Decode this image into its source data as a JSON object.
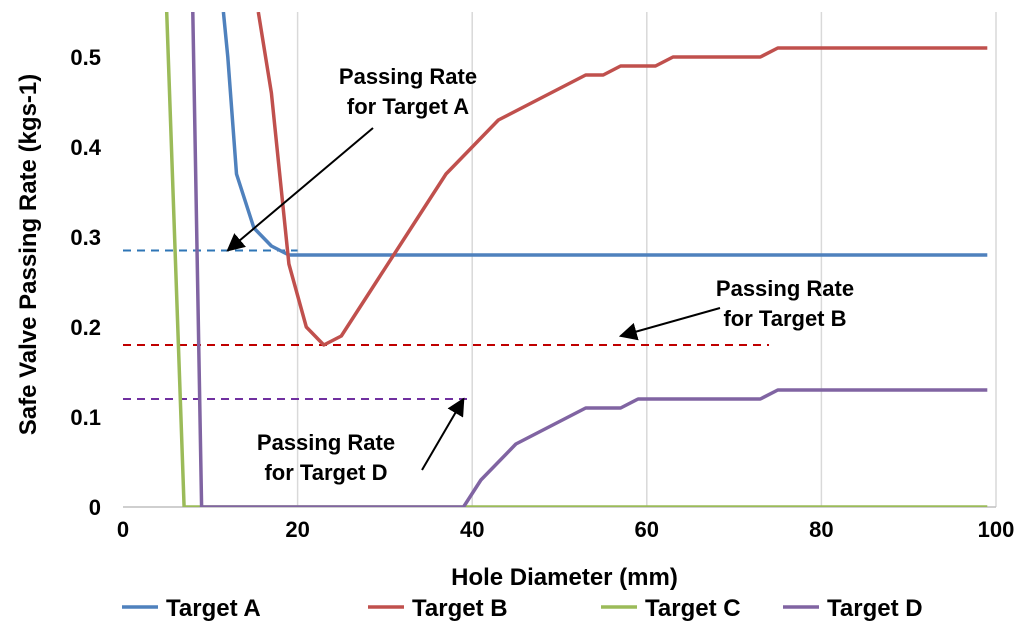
{
  "chart_data": {
    "type": "line",
    "title": "",
    "xlabel": "Hole Diameter (mm)",
    "ylabel": "Safe Valve Passing Rate (kgs-1)",
    "xlim": [
      0,
      100
    ],
    "ylim": [
      0,
      0.55
    ],
    "x_ticks": [
      "0",
      "20",
      "40",
      "60",
      "80",
      "100"
    ],
    "y_ticks": [
      "0",
      "0.1",
      "0.2",
      "0.3",
      "0.4",
      "0.5"
    ],
    "grid": "vertical",
    "legend_position": "bottom",
    "series": [
      {
        "name": "Target A",
        "color": "#4f81bd",
        "points": [
          [
            11.5,
            0.55
          ],
          [
            12,
            0.5
          ],
          [
            13,
            0.37
          ],
          [
            15,
            0.31
          ],
          [
            17,
            0.29
          ],
          [
            19,
            0.28
          ],
          [
            99,
            0.28
          ]
        ]
      },
      {
        "name": "Target B",
        "color": "#c0504d",
        "points": [
          [
            15.5,
            0.55
          ],
          [
            17,
            0.46
          ],
          [
            19,
            0.27
          ],
          [
            21,
            0.2
          ],
          [
            23,
            0.18
          ],
          [
            25,
            0.19
          ],
          [
            29,
            0.25
          ],
          [
            33,
            0.31
          ],
          [
            37,
            0.37
          ],
          [
            43,
            0.43
          ],
          [
            47,
            0.45
          ],
          [
            53,
            0.48
          ],
          [
            55,
            0.48
          ],
          [
            57,
            0.49
          ],
          [
            61,
            0.49
          ],
          [
            63,
            0.5
          ],
          [
            73,
            0.5
          ],
          [
            75,
            0.51
          ],
          [
            99,
            0.51
          ]
        ]
      },
      {
        "name": "Target C",
        "color": "#9bbb59",
        "points": [
          [
            5,
            0.55
          ],
          [
            7,
            0
          ],
          [
            99,
            0
          ]
        ]
      },
      {
        "name": "Target D",
        "color": "#8064a2",
        "points": [
          [
            8,
            0.55
          ],
          [
            9,
            0
          ],
          [
            39,
            0
          ],
          [
            41,
            0.03
          ],
          [
            45,
            0.07
          ],
          [
            53,
            0.11
          ],
          [
            57,
            0.11
          ],
          [
            59,
            0.12
          ],
          [
            73,
            0.12
          ],
          [
            75,
            0.13
          ],
          [
            99,
            0.13
          ]
        ]
      }
    ],
    "reference_lines": [
      {
        "value": 0.285,
        "x_start": 0,
        "x_end": 20,
        "color": "#2e75b6"
      },
      {
        "value": 0.18,
        "x_start": 0,
        "x_end": 74,
        "color": "#c00000"
      },
      {
        "value": 0.12,
        "x_start": 0,
        "x_end": 40,
        "color": "#7030a0"
      }
    ],
    "annotations": [
      {
        "lines": [
          "Passing Rate",
          "for Target A"
        ],
        "arrow_to": [
          12,
          0.285
        ]
      },
      {
        "lines": [
          "Passing Rate",
          "for Target B"
        ],
        "arrow_to": [
          57,
          0.19
        ]
      },
      {
        "lines": [
          "Passing Rate",
          "for Target D"
        ],
        "arrow_to": [
          39,
          0.12
        ]
      }
    ]
  }
}
